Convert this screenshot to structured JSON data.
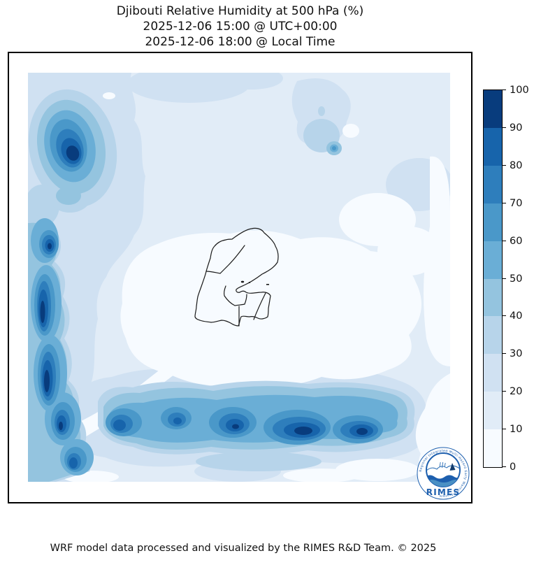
{
  "header": {
    "line1": "Djibouti Relative Humidity at 500 hPa (%)",
    "line2": "2025-12-06 15:00 @ UTC+00:00",
    "line3": "2025-12-06 18:00 @ Local Time"
  },
  "footer": {
    "text": "WRF model data processed and visualized by the RIMES R&D Team. © 2025"
  },
  "logo": {
    "name": "RIMES",
    "ring_text": "Regional Integrated Multi-Hazard Early Warning System",
    "brand_color": "#1d5fae"
  },
  "chart_data": {
    "type": "filled-contour-map",
    "title": "Djibouti Relative Humidity at 500 hPa (%)",
    "variable": "Relative Humidity",
    "pressure_level": "500 hPa",
    "units": "%",
    "valid_time_utc": "2025-12-06 15:00 @ UTC+00:00",
    "valid_time_local": "2025-12-06 18:00 @ Local Time",
    "overlay": "Djibouti administrative region boundaries (black outline, center of map)",
    "colormap": "Blues (discrete, 10 bins)",
    "colorbar": {
      "position": "right",
      "ticks": [
        0,
        10,
        20,
        30,
        40,
        50,
        60,
        70,
        80,
        90,
        100
      ],
      "colors": [
        "#f7fbff",
        "#e1ecf7",
        "#d0e1f2",
        "#b7d4ea",
        "#94c4df",
        "#6aaed6",
        "#4a98c9",
        "#2e7ebc",
        "#1764ab",
        "#083c7d"
      ]
    },
    "features": [
      {
        "area": "northwest quadrant",
        "description": "strong humidity maximum with concentric contours",
        "peak_bin_pct": "90-100"
      },
      {
        "area": "western edge, north-south elongated band",
        "description": "multiple dark humidity cores",
        "peak_bin_pct": "90-100"
      },
      {
        "area": "southern band running west-east",
        "description": "chain of humidity cores, strongest in south-center/right",
        "peak_bin_pct": "80-100"
      },
      {
        "area": "north-center small spot",
        "description": "isolated moist spot",
        "peak_bin_pct": "60-70"
      },
      {
        "area": "center around Djibouti and bottom-right corner",
        "description": "dry background",
        "peak_bin_pct": "0-10"
      },
      {
        "area": "remaining background",
        "peak_bin_pct": "10-30"
      }
    ]
  }
}
